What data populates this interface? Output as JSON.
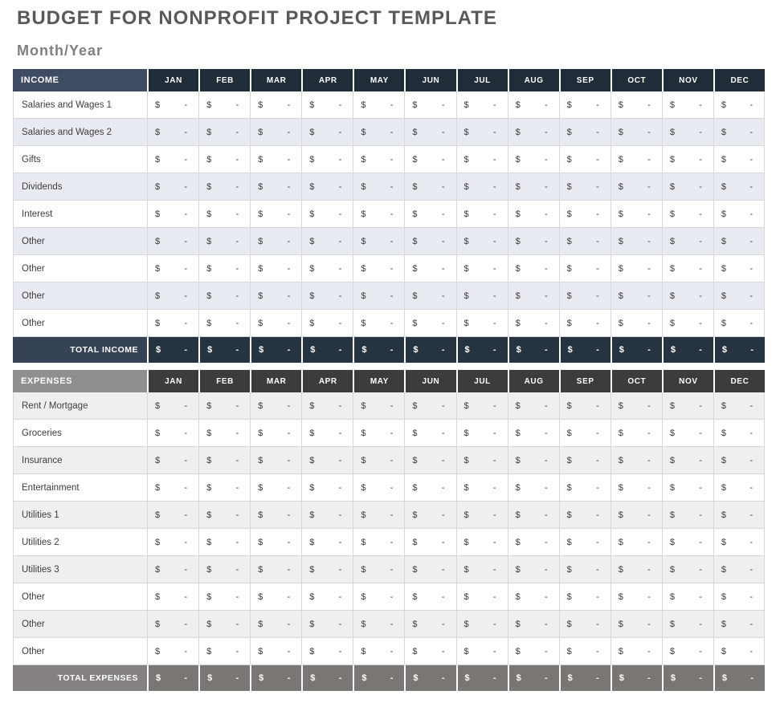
{
  "page": {
    "title": "BUDGET FOR NONPROFIT PROJECT TEMPLATE",
    "subtitle": "Month/Year"
  },
  "months": [
    "JAN",
    "FEB",
    "MAR",
    "APR",
    "MAY",
    "JUN",
    "JUL",
    "AUG",
    "SEP",
    "OCT",
    "NOV",
    "DEC"
  ],
  "placeholder": {
    "currency": "$",
    "empty": "-"
  },
  "income": {
    "header": "INCOME",
    "rows": [
      "Salaries and Wages 1",
      "Salaries and Wages 2",
      "Gifts",
      "Dividends",
      "Interest",
      "Other",
      "Other",
      "Other",
      "Other"
    ],
    "total_label": "TOTAL INCOME"
  },
  "expenses": {
    "header": "EXPENSES",
    "rows": [
      "Rent / Mortgage",
      "Groceries",
      "Insurance",
      "Entertainment",
      "Utilities 1",
      "Utilities 2",
      "Utilities 3",
      "Other",
      "Other",
      "Other"
    ],
    "total_label": "TOTAL EXPENSES"
  },
  "colors": {
    "title_text": "#595959",
    "subtitle_text": "#808080",
    "body_text": "#3d3d3d",
    "cell_border": "#d8d8d8",
    "income_header_label_bg": "#3e4b60",
    "income_month_header_bg": "#212c39",
    "income_row_stripe": "#e9ebf2",
    "income_total_label_bg": "#364356",
    "income_total_cell_bg": "#263341",
    "expenses_header_label_bg": "#908e8e",
    "expenses_month_header_bg": "#3d3c3c",
    "expenses_row_stripe": "#f0eff0",
    "expenses_total_label_bg": "#858180",
    "expenses_total_cell_bg": "#7a7674"
  }
}
